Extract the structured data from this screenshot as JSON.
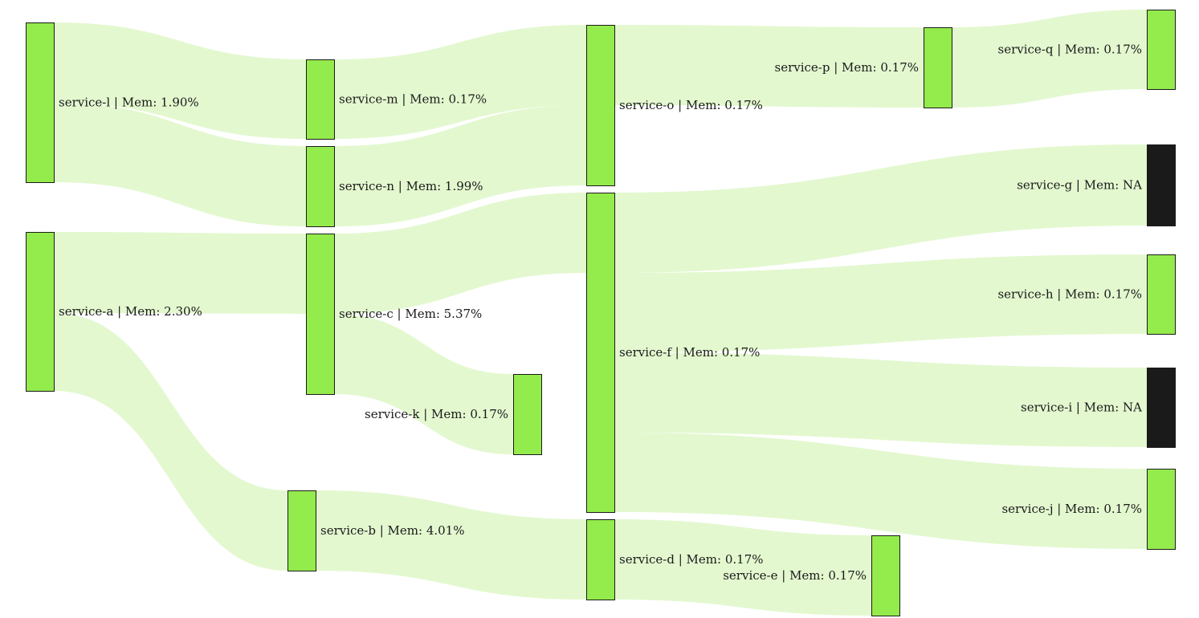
{
  "colors": {
    "node_ok": "#94eb4c",
    "node_na": "#1a1a1a",
    "link": "#e3f8cf",
    "border": "#1a1a1a",
    "text": "#1a1a1a"
  },
  "nodes": [
    {
      "id": "service-l",
      "label": "service-l | Mem: 1.90%",
      "status": "ok"
    },
    {
      "id": "service-a",
      "label": "service-a | Mem: 2.30%",
      "status": "ok"
    },
    {
      "id": "service-m",
      "label": "service-m | Mem: 0.17%",
      "status": "ok"
    },
    {
      "id": "service-n",
      "label": "service-n | Mem: 1.99%",
      "status": "ok"
    },
    {
      "id": "service-c",
      "label": "service-c | Mem: 5.37%",
      "status": "ok"
    },
    {
      "id": "service-b",
      "label": "service-b | Mem: 4.01%",
      "status": "ok"
    },
    {
      "id": "service-k",
      "label": "service-k | Mem: 0.17%",
      "status": "ok"
    },
    {
      "id": "service-o",
      "label": "service-o | Mem: 0.17%",
      "status": "ok"
    },
    {
      "id": "service-f",
      "label": "service-f | Mem: 0.17%",
      "status": "ok"
    },
    {
      "id": "service-d",
      "label": "service-d | Mem: 0.17%",
      "status": "ok"
    },
    {
      "id": "service-p",
      "label": "service-p | Mem: 0.17%",
      "status": "ok"
    },
    {
      "id": "service-e",
      "label": "service-e | Mem: 0.17%",
      "status": "ok"
    },
    {
      "id": "service-q",
      "label": "service-q | Mem: 0.17%",
      "status": "ok"
    },
    {
      "id": "service-g",
      "label": "service-g | Mem: NA",
      "status": "na"
    },
    {
      "id": "service-h",
      "label": "service-h | Mem: 0.17%",
      "status": "ok"
    },
    {
      "id": "service-i",
      "label": "service-i | Mem: NA",
      "status": "na"
    },
    {
      "id": "service-j",
      "label": "service-j | Mem: 0.17%",
      "status": "ok"
    }
  ],
  "links": [
    {
      "source": "service-l",
      "target": "service-m"
    },
    {
      "source": "service-l",
      "target": "service-n"
    },
    {
      "source": "service-a",
      "target": "service-c"
    },
    {
      "source": "service-a",
      "target": "service-b"
    },
    {
      "source": "service-m",
      "target": "service-o"
    },
    {
      "source": "service-n",
      "target": "service-o"
    },
    {
      "source": "service-c",
      "target": "service-f"
    },
    {
      "source": "service-c",
      "target": "service-k"
    },
    {
      "source": "service-b",
      "target": "service-d"
    },
    {
      "source": "service-o",
      "target": "service-p"
    },
    {
      "source": "service-d",
      "target": "service-e"
    },
    {
      "source": "service-p",
      "target": "service-q"
    },
    {
      "source": "service-f",
      "target": "service-g"
    },
    {
      "source": "service-f",
      "target": "service-h"
    },
    {
      "source": "service-f",
      "target": "service-i"
    },
    {
      "source": "service-f",
      "target": "service-j"
    }
  ]
}
